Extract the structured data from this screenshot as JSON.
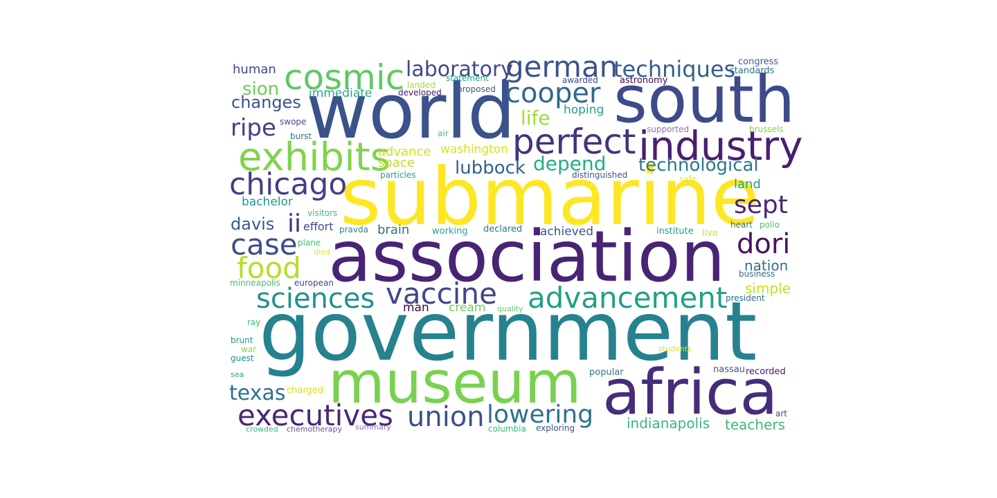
{
  "words": [
    {
      "text": "submarine",
      "color": "#fde725"
    },
    {
      "text": "association",
      "color": "#482475"
    },
    {
      "text": "government",
      "color": "#26828e"
    },
    {
      "text": "world",
      "color": "#3b528b"
    },
    {
      "text": "south",
      "color": "#3e4a89"
    },
    {
      "text": "museum",
      "color": "#7ad151"
    },
    {
      "text": "africa",
      "color": "#472c7a"
    },
    {
      "text": "exhibits",
      "color": "#7fd34e"
    },
    {
      "text": "industry",
      "color": "#481f70"
    },
    {
      "text": "perfect",
      "color": "#46337e"
    },
    {
      "text": "cosmic",
      "color": "#5ec962"
    },
    {
      "text": "german",
      "color": "#3b528b"
    },
    {
      "text": "cooper",
      "color": "#31688e"
    },
    {
      "text": "chicago",
      "color": "#433e85"
    },
    {
      "text": "advancement",
      "color": "#1fa187"
    },
    {
      "text": "vaccine",
      "color": "#404688"
    },
    {
      "text": "sciences",
      "color": "#21918c"
    },
    {
      "text": "executives",
      "color": "#482878"
    },
    {
      "text": "union",
      "color": "#3b528b"
    },
    {
      "text": "lowering",
      "color": "#2c728e"
    },
    {
      "text": "techniques",
      "color": "#365c8d"
    },
    {
      "text": "laboratory",
      "color": "#3f4889"
    },
    {
      "text": "case",
      "color": "#3e4c8a"
    },
    {
      "text": "food",
      "color": "#b5de2b"
    },
    {
      "text": "dori",
      "color": "#471365"
    },
    {
      "text": "sept",
      "color": "#482475"
    },
    {
      "text": "ripe",
      "color": "#433e85"
    },
    {
      "text": "texas",
      "color": "#2c728e"
    },
    {
      "text": "technological",
      "color": "#2a788e"
    },
    {
      "text": "depend",
      "color": "#25ac82"
    },
    {
      "text": "lubbock",
      "color": "#355f8d"
    },
    {
      "text": "ii",
      "color": "#46327e"
    },
    {
      "text": "changes",
      "color": "#3b528b"
    },
    {
      "text": "sion",
      "color": "#6ccd5a"
    },
    {
      "text": "life",
      "color": "#a0da39"
    },
    {
      "text": "davis",
      "color": "#38598c"
    },
    {
      "text": "indianapolis",
      "color": "#35b779"
    },
    {
      "text": "teachers",
      "color": "#3bbb75"
    },
    {
      "text": "nation",
      "color": "#2d708e"
    },
    {
      "text": "simple",
      "color": "#c2df23"
    },
    {
      "text": "human",
      "color": "#3e4a89"
    },
    {
      "text": "immediate",
      "color": "#22a884"
    },
    {
      "text": "hoping",
      "color": "#1f9e89"
    },
    {
      "text": "advance",
      "color": "#d0e11c"
    },
    {
      "text": "washington",
      "color": "#d8e219"
    },
    {
      "text": "space",
      "color": "#bddf26"
    },
    {
      "text": "achieved",
      "color": "#3b528b"
    },
    {
      "text": "land",
      "color": "#1fa188"
    },
    {
      "text": "bachelor",
      "color": "#1f988b"
    },
    {
      "text": "effort",
      "color": "#3e4989"
    },
    {
      "text": "brain",
      "color": "#2c718e"
    },
    {
      "text": "cream",
      "color": "#6ccd5a"
    },
    {
      "text": "man",
      "color": "#440154"
    },
    {
      "text": "congress",
      "color": "#38598c"
    },
    {
      "text": "standards",
      "color": "#2c728e"
    },
    {
      "text": "statement",
      "color": "#22a884"
    },
    {
      "text": "landed",
      "color": "#a5db36"
    },
    {
      "text": "proposed",
      "color": "#3b528b"
    },
    {
      "text": "developed",
      "color": "#481668"
    },
    {
      "text": "astronomy",
      "color": "#440154"
    },
    {
      "text": "swope",
      "color": "#3e4989"
    },
    {
      "text": "burst",
      "color": "#2e6e8e"
    },
    {
      "text": "air",
      "color": "#3fbc73"
    },
    {
      "text": "supported",
      "color": "#8f6fb5"
    },
    {
      "text": "brussels",
      "color": "#7ad151"
    },
    {
      "text": "distinguished",
      "color": "#3b528b"
    },
    {
      "text": "safe",
      "color": "#e5e419"
    },
    {
      "text": "particles",
      "color": "#1f9e89"
    },
    {
      "text": "visitors",
      "color": "#3dbc74"
    },
    {
      "text": "pravda",
      "color": "#26818e"
    },
    {
      "text": "working",
      "color": "#22a785"
    },
    {
      "text": "declared",
      "color": "#2a788e"
    },
    {
      "text": "institute",
      "color": "#1f9e89"
    },
    {
      "text": "live",
      "color": "#c8e020"
    },
    {
      "text": "heart",
      "color": "#2c728e"
    },
    {
      "text": "polio",
      "color": "#44bf70"
    },
    {
      "text": "plane",
      "color": "#44bf70"
    },
    {
      "text": "died",
      "color": "#e5e419"
    },
    {
      "text": "minneapolis",
      "color": "#44bf70"
    },
    {
      "text": "european",
      "color": "#3e4a89"
    },
    {
      "text": "business",
      "color": "#31688e"
    },
    {
      "text": "president",
      "color": "#2d708e"
    },
    {
      "text": "quality",
      "color": "#5ec962"
    },
    {
      "text": "ray",
      "color": "#3bbb75"
    },
    {
      "text": "brunt",
      "color": "#1f988b"
    },
    {
      "text": "war",
      "color": "#84d44b"
    },
    {
      "text": "guest",
      "color": "#24878e"
    },
    {
      "text": "students",
      "color": "#d2e21b"
    },
    {
      "text": "sea",
      "color": "#21a685"
    },
    {
      "text": "popular",
      "color": "#2a788e"
    },
    {
      "text": "nassau",
      "color": "#3b528b"
    },
    {
      "text": "recorded",
      "color": "#481668"
    },
    {
      "text": "charged",
      "color": "#d8e219"
    },
    {
      "text": "art",
      "color": "#3e4a89"
    },
    {
      "text": "crowded",
      "color": "#35b779"
    },
    {
      "text": "chemotherapy",
      "color": "#6c568f"
    },
    {
      "text": "summary",
      "color": "#8f6fb5"
    },
    {
      "text": "columbia",
      "color": "#35b779"
    },
    {
      "text": "exploring",
      "color": "#3b528b"
    },
    {
      "text": "awarded",
      "color": "#3e4a89"
    }
  ]
}
